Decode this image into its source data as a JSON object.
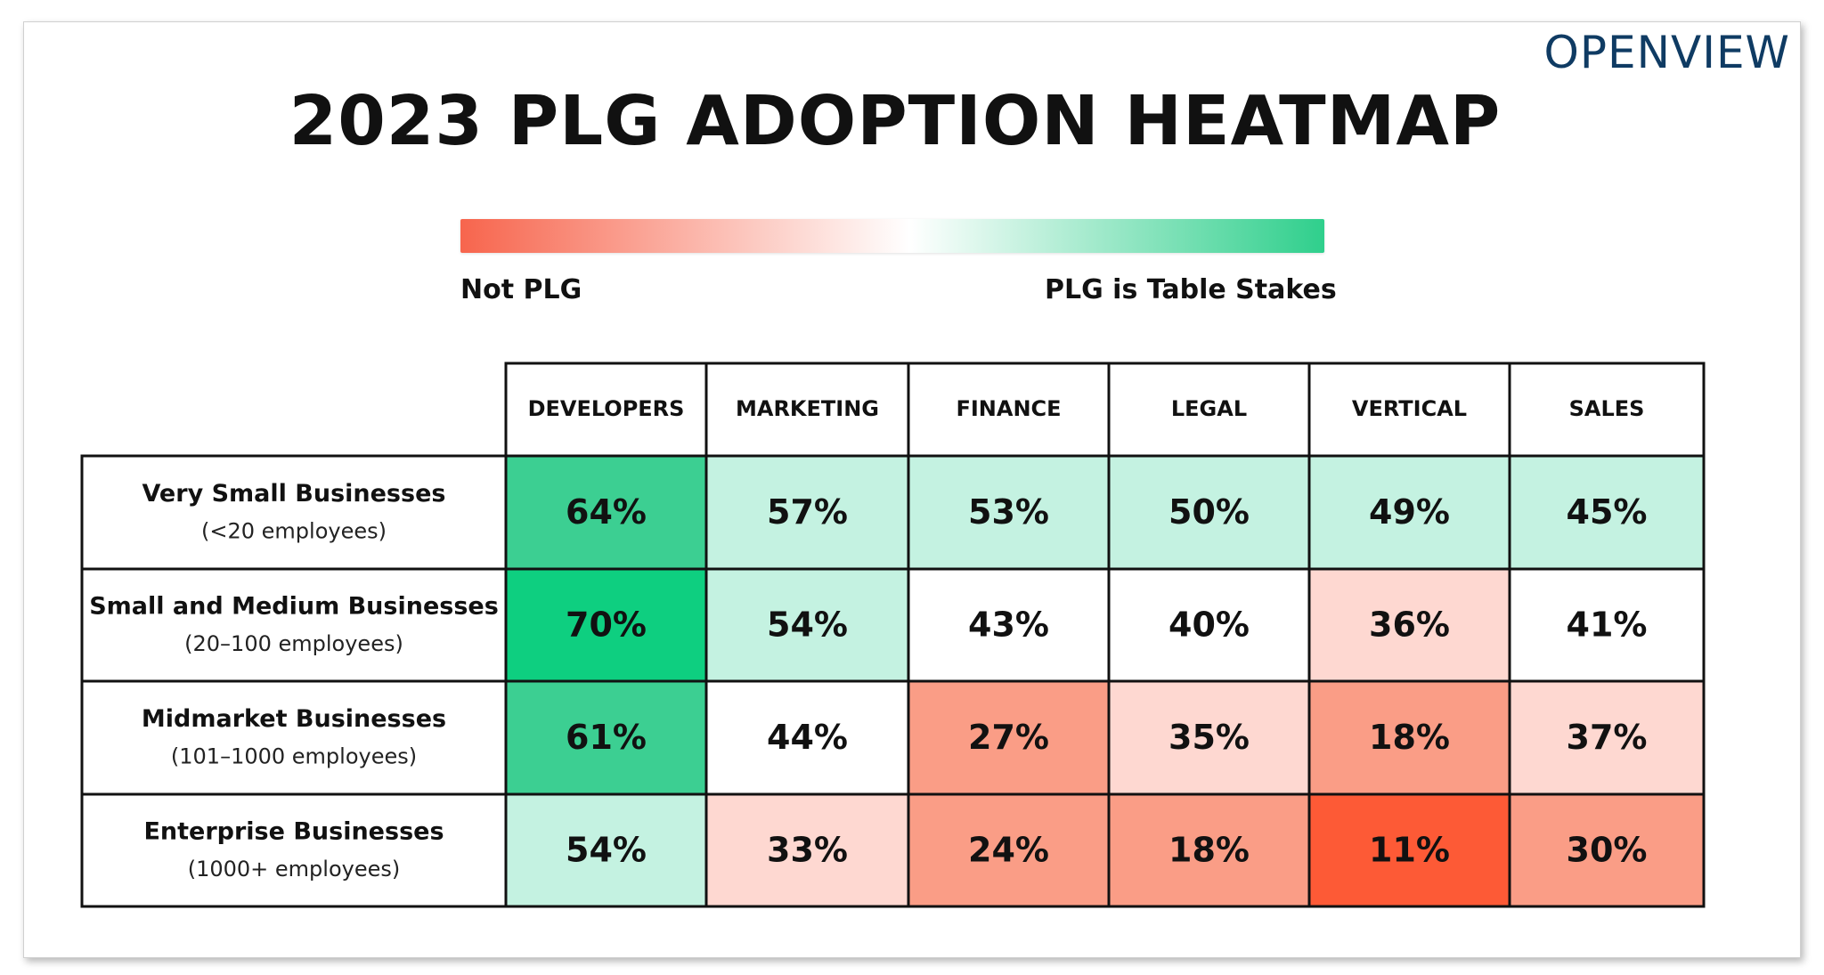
{
  "brand": "OPENVIEW",
  "chart_data": {
    "type": "heatmap",
    "title": "2023 PLG ADOPTION HEATMAP",
    "legend": {
      "low_label": "Not PLG",
      "high_label": "PLG is Table Stakes",
      "low_color": "#f7654d",
      "mid_color": "#ffffff",
      "high_color": "#2fcf8c"
    },
    "columns": [
      "DEVELOPERS",
      "MARKETING",
      "FINANCE",
      "LEGAL",
      "VERTICAL",
      "SALES"
    ],
    "rows": [
      {
        "name": "Very Small Businesses",
        "sub": "(<20 employees)",
        "values": [
          64,
          57,
          53,
          50,
          49,
          45
        ]
      },
      {
        "name": "Small and Medium Businesses",
        "sub": "(20–100 employees)",
        "values": [
          70,
          54,
          43,
          40,
          36,
          41
        ]
      },
      {
        "name": "Midmarket Businesses",
        "sub": "(101–1000 employees)",
        "values": [
          61,
          44,
          27,
          35,
          18,
          37
        ]
      },
      {
        "name": "Enterprise Businesses",
        "sub": "(1000+ employees)",
        "values": [
          54,
          33,
          24,
          18,
          11,
          30
        ]
      }
    ],
    "value_suffix": "%",
    "cell_colors": [
      [
        "#3ccf92",
        "#c4f2e1",
        "#c4f2e1",
        "#c4f2e1",
        "#c4f2e1",
        "#c4f2e1"
      ],
      [
        "#0ecf80",
        "#c4f2e1",
        "#ffffff",
        "#ffffff",
        "#fed8d1",
        "#ffffff"
      ],
      [
        "#3ccf92",
        "#ffffff",
        "#fa9d86",
        "#fed8d1",
        "#fa9d86",
        "#fed8d1"
      ],
      [
        "#c4f2e1",
        "#fed8d1",
        "#fa9d86",
        "#fa9d86",
        "#fd5a36",
        "#fa9d86"
      ]
    ]
  }
}
